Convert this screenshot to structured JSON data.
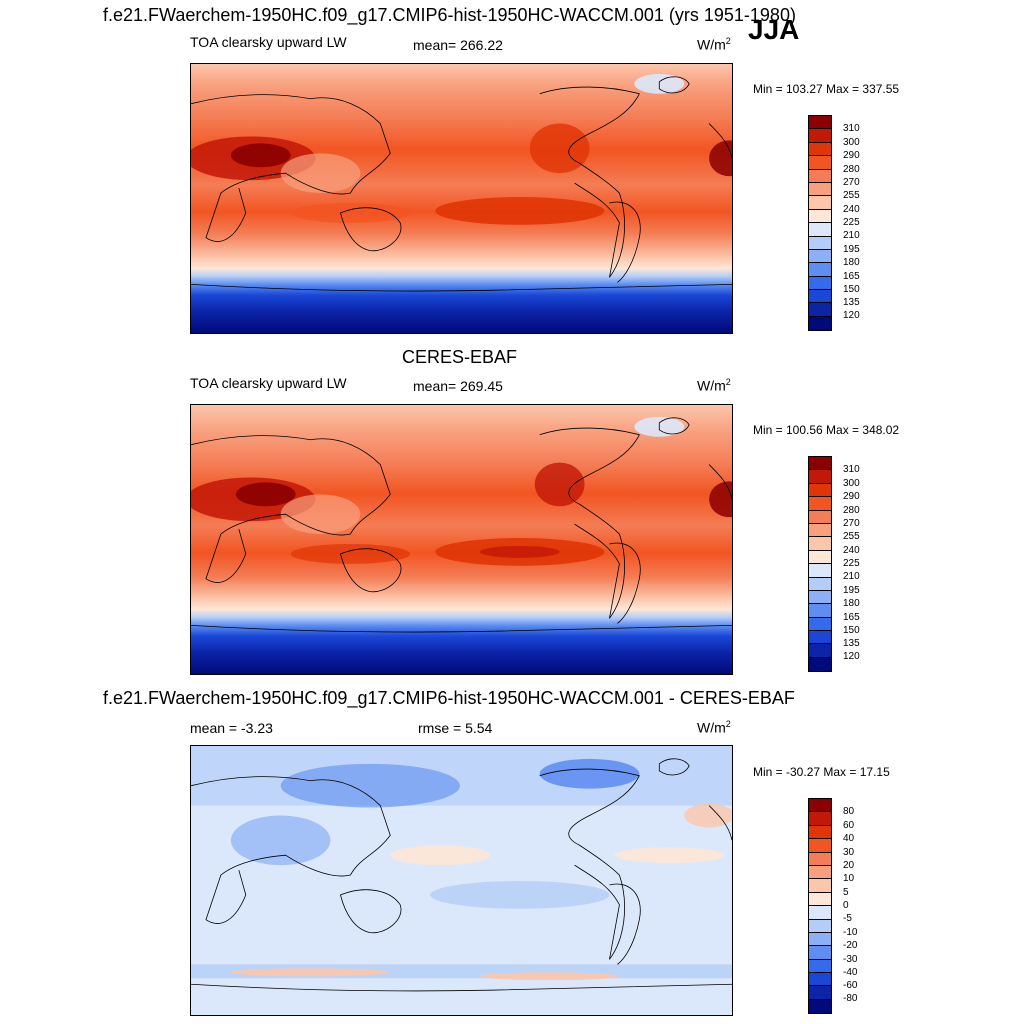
{
  "season": "JJA",
  "panels": [
    {
      "title": "f.e21.FWaerchem-1950HC.f09_g17.CMIP6-hist-1950HC-WACCM.001 (yrs 1951-1980)",
      "left_label": "TOA clearsky upward LW",
      "center_label": "mean= 266.22",
      "units": "W/m",
      "units_sup": "2",
      "minmax": "Min = 103.27 Max = 337.55"
    },
    {
      "title": "CERES-EBAF",
      "left_label": "TOA clearsky upward LW",
      "center_label": "mean= 269.45",
      "units": "W/m",
      "units_sup": "2",
      "minmax": "Min = 100.56 Max = 348.02"
    },
    {
      "title": "f.e21.FWaerchem-1950HC.f09_g17.CMIP6-hist-1950HC-WACCM.001 - CERES-EBAF",
      "left_label": "mean =  -3.23",
      "center_label": "rmse =   5.54",
      "units": "W/m",
      "units_sup": "2",
      "minmax": "Min = -30.27 Max =  17.15"
    }
  ],
  "colorbar_abs": {
    "levels": [
      "310",
      "300",
      "290",
      "280",
      "270",
      "255",
      "240",
      "225",
      "210",
      "195",
      "180",
      "165",
      "150",
      "135",
      "120"
    ],
    "colors": [
      "#8b0000",
      "#c21807",
      "#e03506",
      "#f25522",
      "#f47d55",
      "#f8a07e",
      "#fcc6ab",
      "#fee7d6",
      "#dbe8fb",
      "#b4cdf8",
      "#8cb0f5",
      "#5d8ef0",
      "#346bec",
      "#1a47d6",
      "#0b24a8",
      "#000a7a"
    ]
  },
  "colorbar_diff": {
    "levels": [
      "80",
      "60",
      "40",
      "30",
      "20",
      "10",
      "5",
      "0",
      "-5",
      "-10",
      "-20",
      "-30",
      "-40",
      "-60",
      "-80"
    ],
    "colors": [
      "#8b0000",
      "#c21807",
      "#e03506",
      "#f25522",
      "#f47d55",
      "#f8a07e",
      "#fcc6ab",
      "#fee7d6",
      "#dbe8fb",
      "#b4cdf8",
      "#8cb0f5",
      "#5d8ef0",
      "#346bec",
      "#1a47d6",
      "#0b24a8",
      "#000a7a"
    ]
  }
}
